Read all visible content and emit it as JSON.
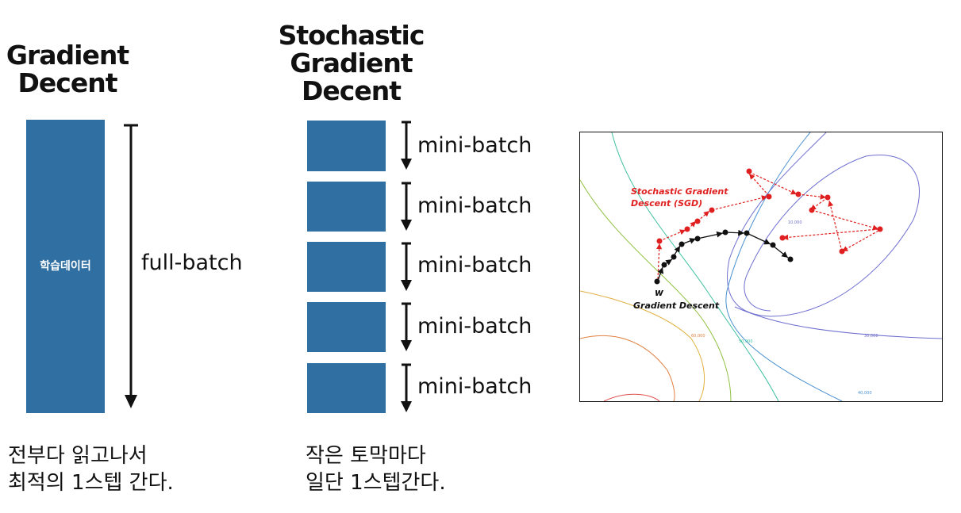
{
  "gradient_descent": {
    "title_line1": "Gradient",
    "title_line2": "Decent",
    "block_label": "학습데이터",
    "batch_label": "full-batch",
    "caption_line1": "전부다 읽고나서",
    "caption_line2": "최적의 1스텝 간다."
  },
  "stochastic_gradient_descent": {
    "title_line1": "Stochastic",
    "title_line2": "Gradient",
    "title_line3": "Decent",
    "mini_batches": [
      "mini-batch",
      "mini-batch",
      "mini-batch",
      "mini-batch",
      "mini-batch"
    ],
    "caption_line1": "작은 토막마다",
    "caption_line2": "일단 1스텝간다."
  },
  "plot": {
    "sgd_label_line1": "Stochastic Gradient",
    "sgd_label_line2": "Descent (SGD)",
    "weight_label": "w",
    "gd_label": "Gradient Descent",
    "contour_labels": [
      "10,000",
      "30,000",
      "40,000",
      "50,000",
      "60,000"
    ]
  },
  "colors": {
    "block": "#2f6fa2",
    "sgd_path": "#e02020",
    "gd_path": "#111111"
  }
}
